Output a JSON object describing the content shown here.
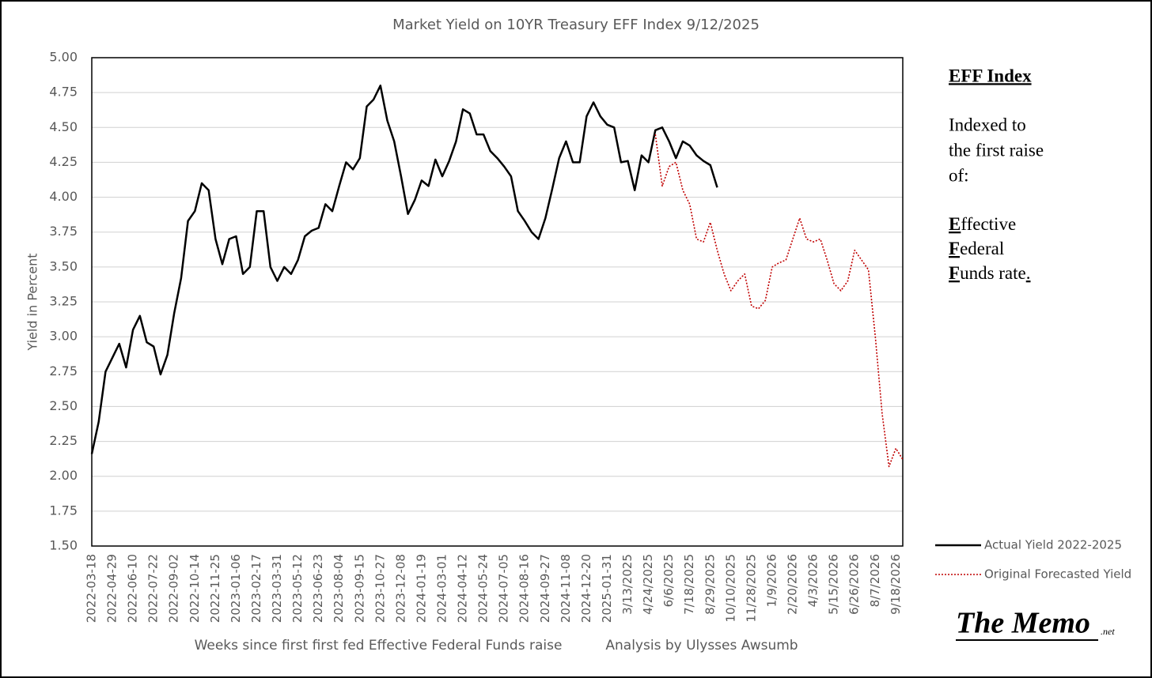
{
  "chart_data": {
    "type": "line",
    "title": "Market Yield on 10YR Treasury EFF Index 9/12/2025",
    "x_label": "Weeks since first first fed Effective Federal Funds raise",
    "x_note": "Analysis by Ulysses Awsumb",
    "y_label": "Yield in Percent",
    "categories": [
      "2022-03-18",
      null,
      null,
      "2022-04-29",
      null,
      null,
      "2022-06-10",
      null,
      null,
      "2022-07-22",
      null,
      null,
      "2022-09-02",
      null,
      null,
      "2022-10-14",
      null,
      null,
      "2022-11-25",
      null,
      null,
      "2023-01-06",
      null,
      null,
      "2023-02-17",
      null,
      null,
      "2023-03-31",
      null,
      null,
      "2023-05-12",
      null,
      null,
      "2023-06-23",
      null,
      null,
      "2023-08-04",
      null,
      null,
      "2023-09-15",
      null,
      null,
      "2023-10-27",
      null,
      null,
      "2023-12-08",
      null,
      null,
      "2024-01-19",
      null,
      null,
      "2024-03-01",
      null,
      null,
      "2024-04-12",
      null,
      null,
      "2024-05-24",
      null,
      null,
      "2024-07-05",
      null,
      null,
      "2024-08-16",
      null,
      null,
      "2024-09-27",
      null,
      null,
      "2024-11-08",
      null,
      null,
      "2024-12-20",
      null,
      null,
      "2025-01-31",
      null,
      null,
      "3/13/2025",
      null,
      null,
      "4/24/2025",
      null,
      null,
      "6/6/2025",
      null,
      null,
      "7/18/2025",
      null,
      null,
      "8/29/2025",
      null,
      null,
      "10/10/2025",
      null,
      null,
      "11/28/2025",
      null,
      null,
      "1/9/2026",
      null,
      null,
      "2/20/2026",
      null,
      null,
      "4/3/2026",
      null,
      null,
      "5/15/2026",
      null,
      null,
      "6/26/2026",
      null,
      null,
      "8/7/2026",
      null,
      null,
      "9/18/2026",
      null
    ],
    "series": [
      {
        "name": "Actual Yield 2022-2025",
        "color": "#000000",
        "dash": "solid",
        "values": [
          2.16,
          2.39,
          2.75,
          2.85,
          2.95,
          2.78,
          3.05,
          3.15,
          2.96,
          2.93,
          2.73,
          2.87,
          3.17,
          3.42,
          3.83,
          3.9,
          4.1,
          4.05,
          3.7,
          3.52,
          3.7,
          3.72,
          3.45,
          3.5,
          3.9,
          3.9,
          3.5,
          3.4,
          3.5,
          3.45,
          3.55,
          3.72,
          3.76,
          3.78,
          3.95,
          3.9,
          4.08,
          4.25,
          4.2,
          4.28,
          4.65,
          4.7,
          4.8,
          4.55,
          4.4,
          4.15,
          3.88,
          3.98,
          4.12,
          4.08,
          4.27,
          4.15,
          4.26,
          4.4,
          4.63,
          4.6,
          4.45,
          4.45,
          4.33,
          4.28,
          4.22,
          4.15,
          3.9,
          3.83,
          3.75,
          3.7,
          3.85,
          4.06,
          4.28,
          4.4,
          4.25,
          4.25,
          4.58,
          4.68,
          4.58,
          4.52,
          4.5,
          4.25,
          4.26,
          4.05,
          4.3,
          4.25,
          4.48,
          4.5,
          4.4,
          4.28,
          4.4,
          4.37,
          4.3,
          4.26,
          4.23,
          4.07,
          null,
          null,
          null,
          null,
          null,
          null,
          null,
          null,
          null,
          null,
          null,
          null,
          null,
          null,
          null,
          null,
          null,
          null,
          null,
          null,
          null,
          null,
          null,
          null,
          null,
          null,
          null
        ]
      },
      {
        "name": "Original Forecasted Yield",
        "color": "#c00000",
        "dash": "dotted",
        "values": [
          null,
          null,
          null,
          null,
          null,
          null,
          null,
          null,
          null,
          null,
          null,
          null,
          null,
          null,
          null,
          null,
          null,
          null,
          null,
          null,
          null,
          null,
          null,
          null,
          null,
          null,
          null,
          null,
          null,
          null,
          null,
          null,
          null,
          null,
          null,
          null,
          null,
          null,
          null,
          null,
          null,
          null,
          null,
          null,
          null,
          null,
          null,
          null,
          null,
          null,
          null,
          null,
          null,
          null,
          null,
          null,
          null,
          null,
          null,
          null,
          null,
          null,
          null,
          null,
          null,
          null,
          null,
          null,
          null,
          null,
          null,
          null,
          null,
          null,
          null,
          null,
          null,
          null,
          null,
          null,
          null,
          null,
          4.45,
          4.08,
          4.22,
          4.25,
          4.05,
          3.95,
          3.7,
          3.68,
          3.82,
          3.62,
          3.45,
          3.33,
          3.4,
          3.45,
          3.22,
          3.2,
          3.26,
          3.5,
          3.53,
          3.55,
          3.7,
          3.85,
          3.7,
          3.68,
          3.7,
          3.55,
          3.38,
          3.33,
          3.4,
          3.62,
          3.55,
          3.48,
          3.0,
          2.45,
          2.07,
          2.2,
          2.12
        ]
      }
    ],
    "ylim": [
      1.5,
      5.0
    ],
    "yticks": [
      {
        "value": 1.5,
        "label": "1.50"
      },
      {
        "value": 1.75,
        "label": "1.75"
      },
      {
        "value": 2,
        "label": "2.00"
      },
      {
        "value": 2.25,
        "label": "2.25"
      },
      {
        "value": 2.5,
        "label": "2.50"
      },
      {
        "value": 2.75,
        "label": "2.75"
      },
      {
        "value": 3,
        "label": "3.00"
      },
      {
        "value": 3.25,
        "label": "3.25"
      },
      {
        "value": 3.5,
        "label": "3.50"
      },
      {
        "value": 3.75,
        "label": "3.75"
      },
      {
        "value": 4,
        "label": "4.00"
      },
      {
        "value": 4.25,
        "label": "4.25"
      },
      {
        "value": 4.5,
        "label": "4.50"
      },
      {
        "value": 4.75,
        "label": "4.75"
      },
      {
        "value": 5,
        "label": "5.00"
      }
    ],
    "grid": true,
    "legend": "bottom-right"
  },
  "sidebar": {
    "heading": "EFF Index",
    "intro": [
      "Indexed to",
      "the first raise",
      "of:"
    ],
    "terms": [
      {
        "initial": "E",
        "rest": "ffective"
      },
      {
        "initial": "F",
        "rest": "ederal"
      },
      {
        "initial": "F",
        "rest": "unds rate",
        "tail": "."
      }
    ]
  },
  "brand": {
    "name": "The Memo",
    "suffix": ".net"
  }
}
